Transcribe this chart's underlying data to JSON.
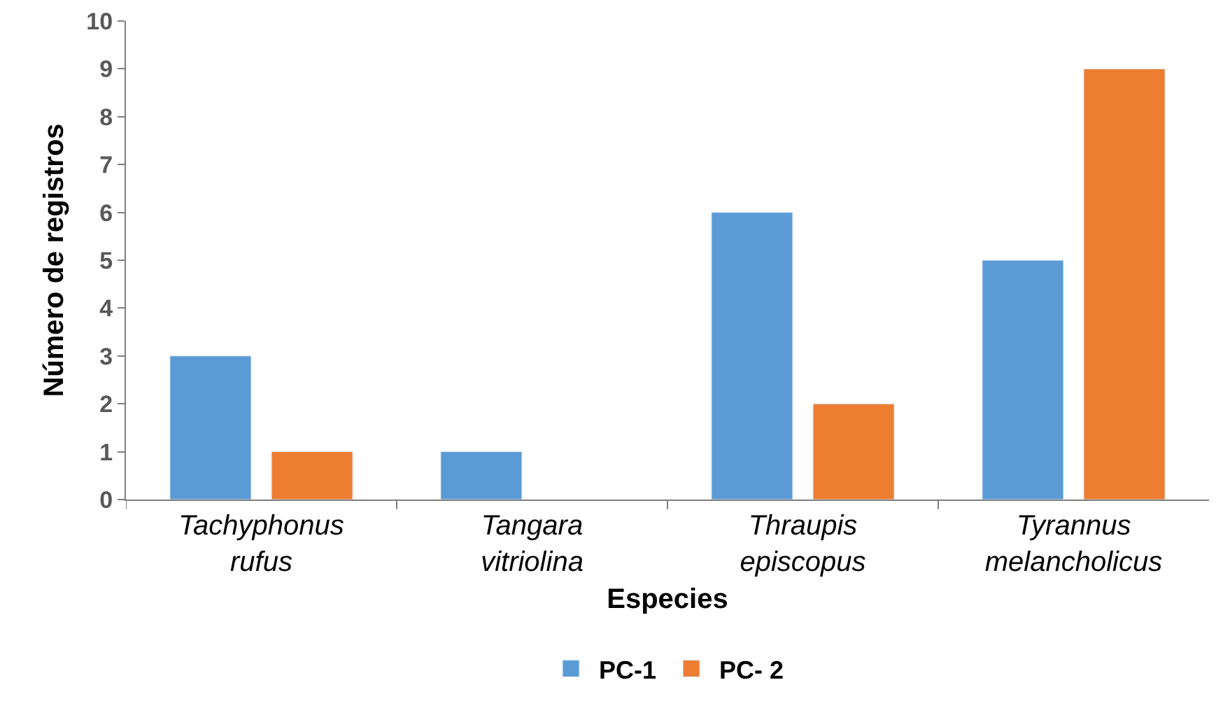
{
  "chart_data": {
    "type": "bar",
    "xlabel": "Especies",
    "ylabel": "Número de registros",
    "categories": [
      "Tachyphonus\nrufus",
      "Tangara\nvitriolina",
      "Thraupis\nepiscopus",
      "Tyrannus\nmelancholicus"
    ],
    "series": [
      {
        "name": "PC-1",
        "color": "#5b9bd5",
        "values": [
          3,
          1,
          6,
          5
        ]
      },
      {
        "name": "PC- 2",
        "color": "#ed7d31",
        "values": [
          1,
          null,
          2,
          9
        ]
      }
    ],
    "ylim": [
      0,
      10
    ],
    "yticks": [
      0,
      1,
      2,
      3,
      4,
      5,
      6,
      7,
      8,
      9,
      10
    ],
    "legend": "bottom"
  }
}
